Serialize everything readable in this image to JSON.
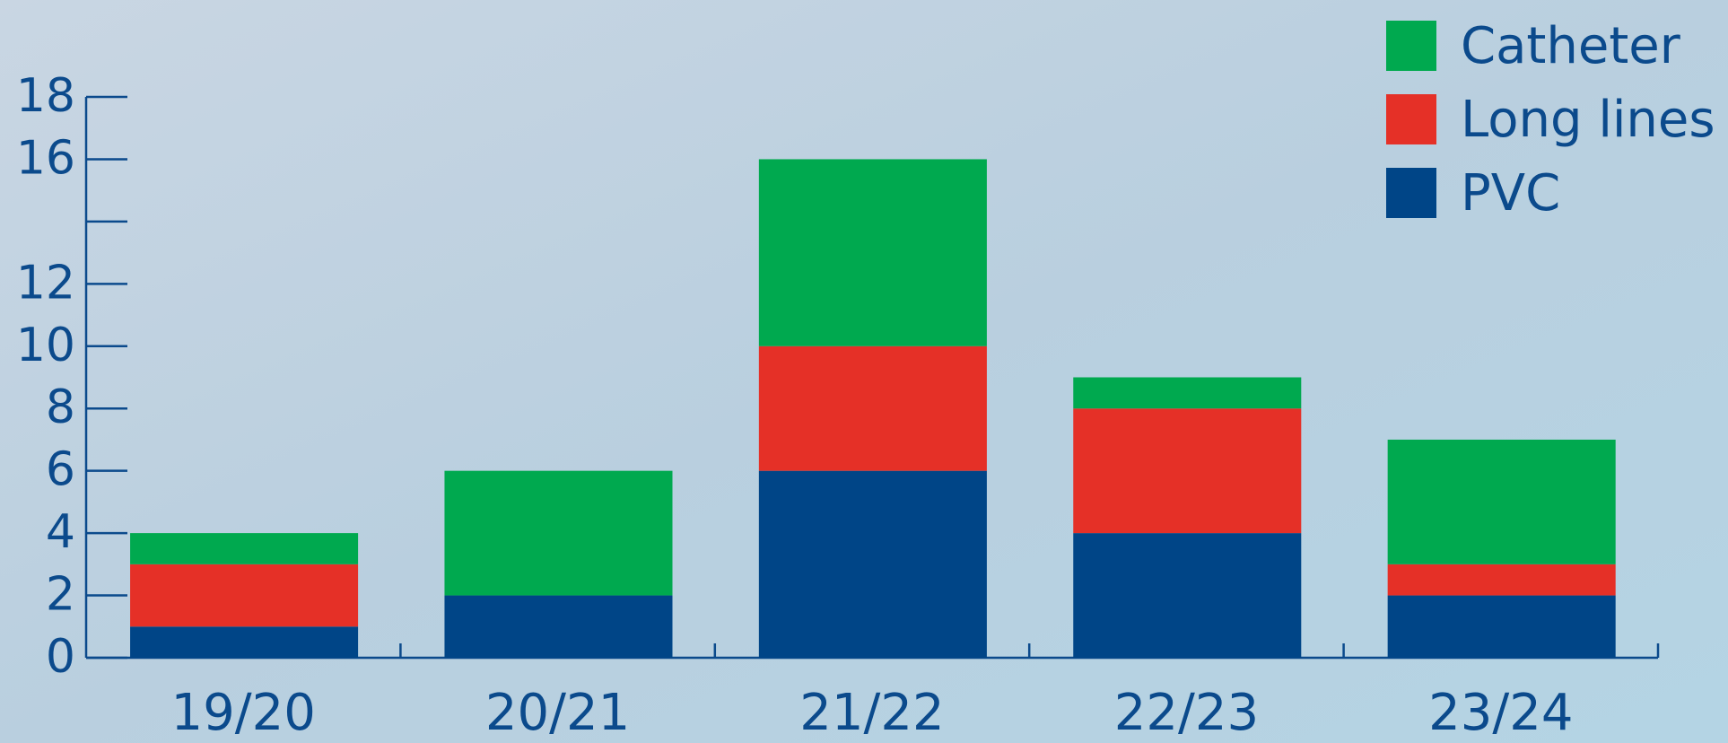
{
  "chart_data": {
    "type": "stacked_bar",
    "categories": [
      "19/20",
      "20/21",
      "21/22",
      "22/23",
      "23/24"
    ],
    "series": [
      {
        "name": "PVC",
        "color": "#004587",
        "values": [
          1,
          2,
          6,
          4,
          2
        ]
      },
      {
        "name": "Long lines",
        "color": "#e53027",
        "values": [
          2,
          0,
          4,
          4,
          1
        ]
      },
      {
        "name": "Catheter",
        "color": "#00a94f",
        "values": [
          1,
          4,
          6,
          1,
          4
        ]
      }
    ],
    "ylim": [
      0,
      18
    ],
    "yticks": [
      0,
      2,
      4,
      6,
      8,
      10,
      12,
      {
        "value": 14,
        "label": null
      },
      16,
      18
    ],
    "legend": "top-right"
  }
}
